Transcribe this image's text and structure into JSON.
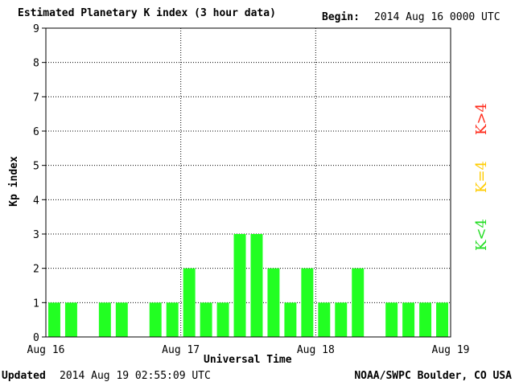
{
  "header": {
    "title": "Estimated Planetary K index (3 hour data)",
    "begin_label": "Begin:",
    "begin_value": "2014 Aug 16 0000 UTC"
  },
  "footer": {
    "updated_label": "Updated",
    "updated_value": "2014 Aug 19 02:55:09 UTC",
    "credit": "NOAA/SWPC Boulder, CO USA"
  },
  "legend": {
    "red_label": "K>4",
    "yellow_label": "K=4",
    "green_label": "K<4",
    "colors": {
      "below": "#22ff22",
      "equal": "#ffcc00",
      "above": "#ff2a1a"
    }
  },
  "chart_data": {
    "type": "bar",
    "title": "Estimated Planetary K index (3 hour data)",
    "xlabel": "Universal Time",
    "ylabel": "Kp index",
    "ylim": [
      0,
      9
    ],
    "yticks": [
      0,
      1,
      2,
      3,
      4,
      5,
      6,
      7,
      8,
      9
    ],
    "xtick_labels": [
      "Aug 16",
      "Aug 17",
      "Aug 18",
      "Aug 19"
    ],
    "interval_hours": 3,
    "values": [
      1,
      1,
      null,
      1,
      1,
      null,
      1,
      1,
      2,
      1,
      1,
      3,
      3,
      2,
      1,
      2,
      1,
      1,
      2,
      null,
      1,
      1,
      1,
      1
    ],
    "grid": true
  }
}
